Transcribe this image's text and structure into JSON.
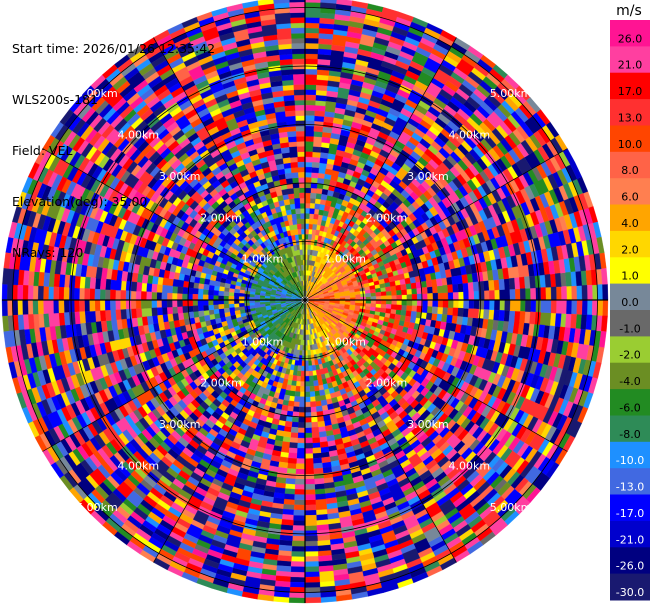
{
  "header": {
    "start_time": "Start time: 2026/01/26 12:35:42",
    "instrument": "WLS200s-181",
    "field": "Field: VEL",
    "elevation": "Elevation(deg): 35.00",
    "nrays": "NRays: 120"
  },
  "colorbar": {
    "unit": "m/s",
    "ticks": [
      "26.0",
      "21.0",
      "17.0",
      "13.0",
      "10.0",
      "8.0",
      "6.0",
      "4.0",
      "2.0",
      "1.0",
      "0.0",
      "-1.0",
      "-2.0",
      "-4.0",
      "-6.0",
      "-8.0",
      "-10.0",
      "-13.0",
      "-17.0",
      "-21.0",
      "-26.0",
      "-30.0"
    ],
    "colors": [
      "#ff1493",
      "#ff3fa0",
      "#ff0000",
      "#ff3030",
      "#ff4500",
      "#ff6347",
      "#ff7f50",
      "#ffa500",
      "#ffd700",
      "#ffff00",
      "#778899",
      "#696969",
      "#9acd32",
      "#6b8e23",
      "#228b22",
      "#2e8b57",
      "#1e90ff",
      "#4169e1",
      "#0000ff",
      "#0000cd",
      "#000080",
      "#191970"
    ]
  },
  "chart_data": {
    "type": "heatmap",
    "subtype": "polar PPI scan",
    "field": "VEL",
    "units": "m/s",
    "nrays": 120,
    "elevation_deg": 35.0,
    "range_ring_labels": [
      "1.00km",
      "2.00km",
      "3.00km",
      "4.00km",
      "5.00km"
    ],
    "value_range": [
      -30.0,
      26.0
    ],
    "grid": true
  }
}
